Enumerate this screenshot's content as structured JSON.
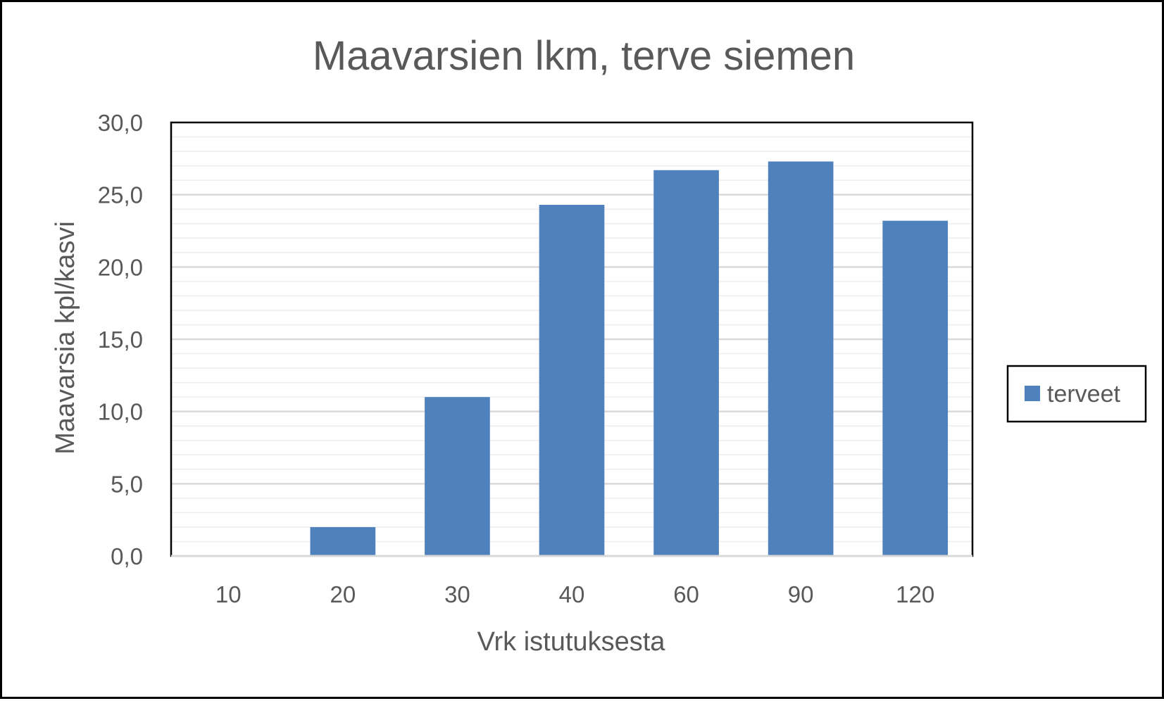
{
  "colors": {
    "bar": "#4f81bd",
    "text": "#595959",
    "major_grid": "#d9d9d9",
    "minor_grid": "#eeeeee",
    "frame": "#000000"
  },
  "chart_data": {
    "type": "bar",
    "title": "Maavarsien lkm, terve siemen",
    "xlabel": "Vrk istutuksesta",
    "ylabel": "Maavarsia kpl/kasvi",
    "categories": [
      "10",
      "20",
      "30",
      "40",
      "60",
      "90",
      "120"
    ],
    "series": [
      {
        "name": "terveet",
        "values": [
          0.0,
          2.0,
          11.0,
          24.3,
          26.7,
          27.3,
          23.2
        ]
      }
    ],
    "ylim": [
      0,
      30
    ],
    "y_ticks": [
      "0,0",
      "5,0",
      "10,0",
      "15,0",
      "20,0",
      "25,0",
      "30,0"
    ],
    "grid": true,
    "legend_position": "right"
  }
}
